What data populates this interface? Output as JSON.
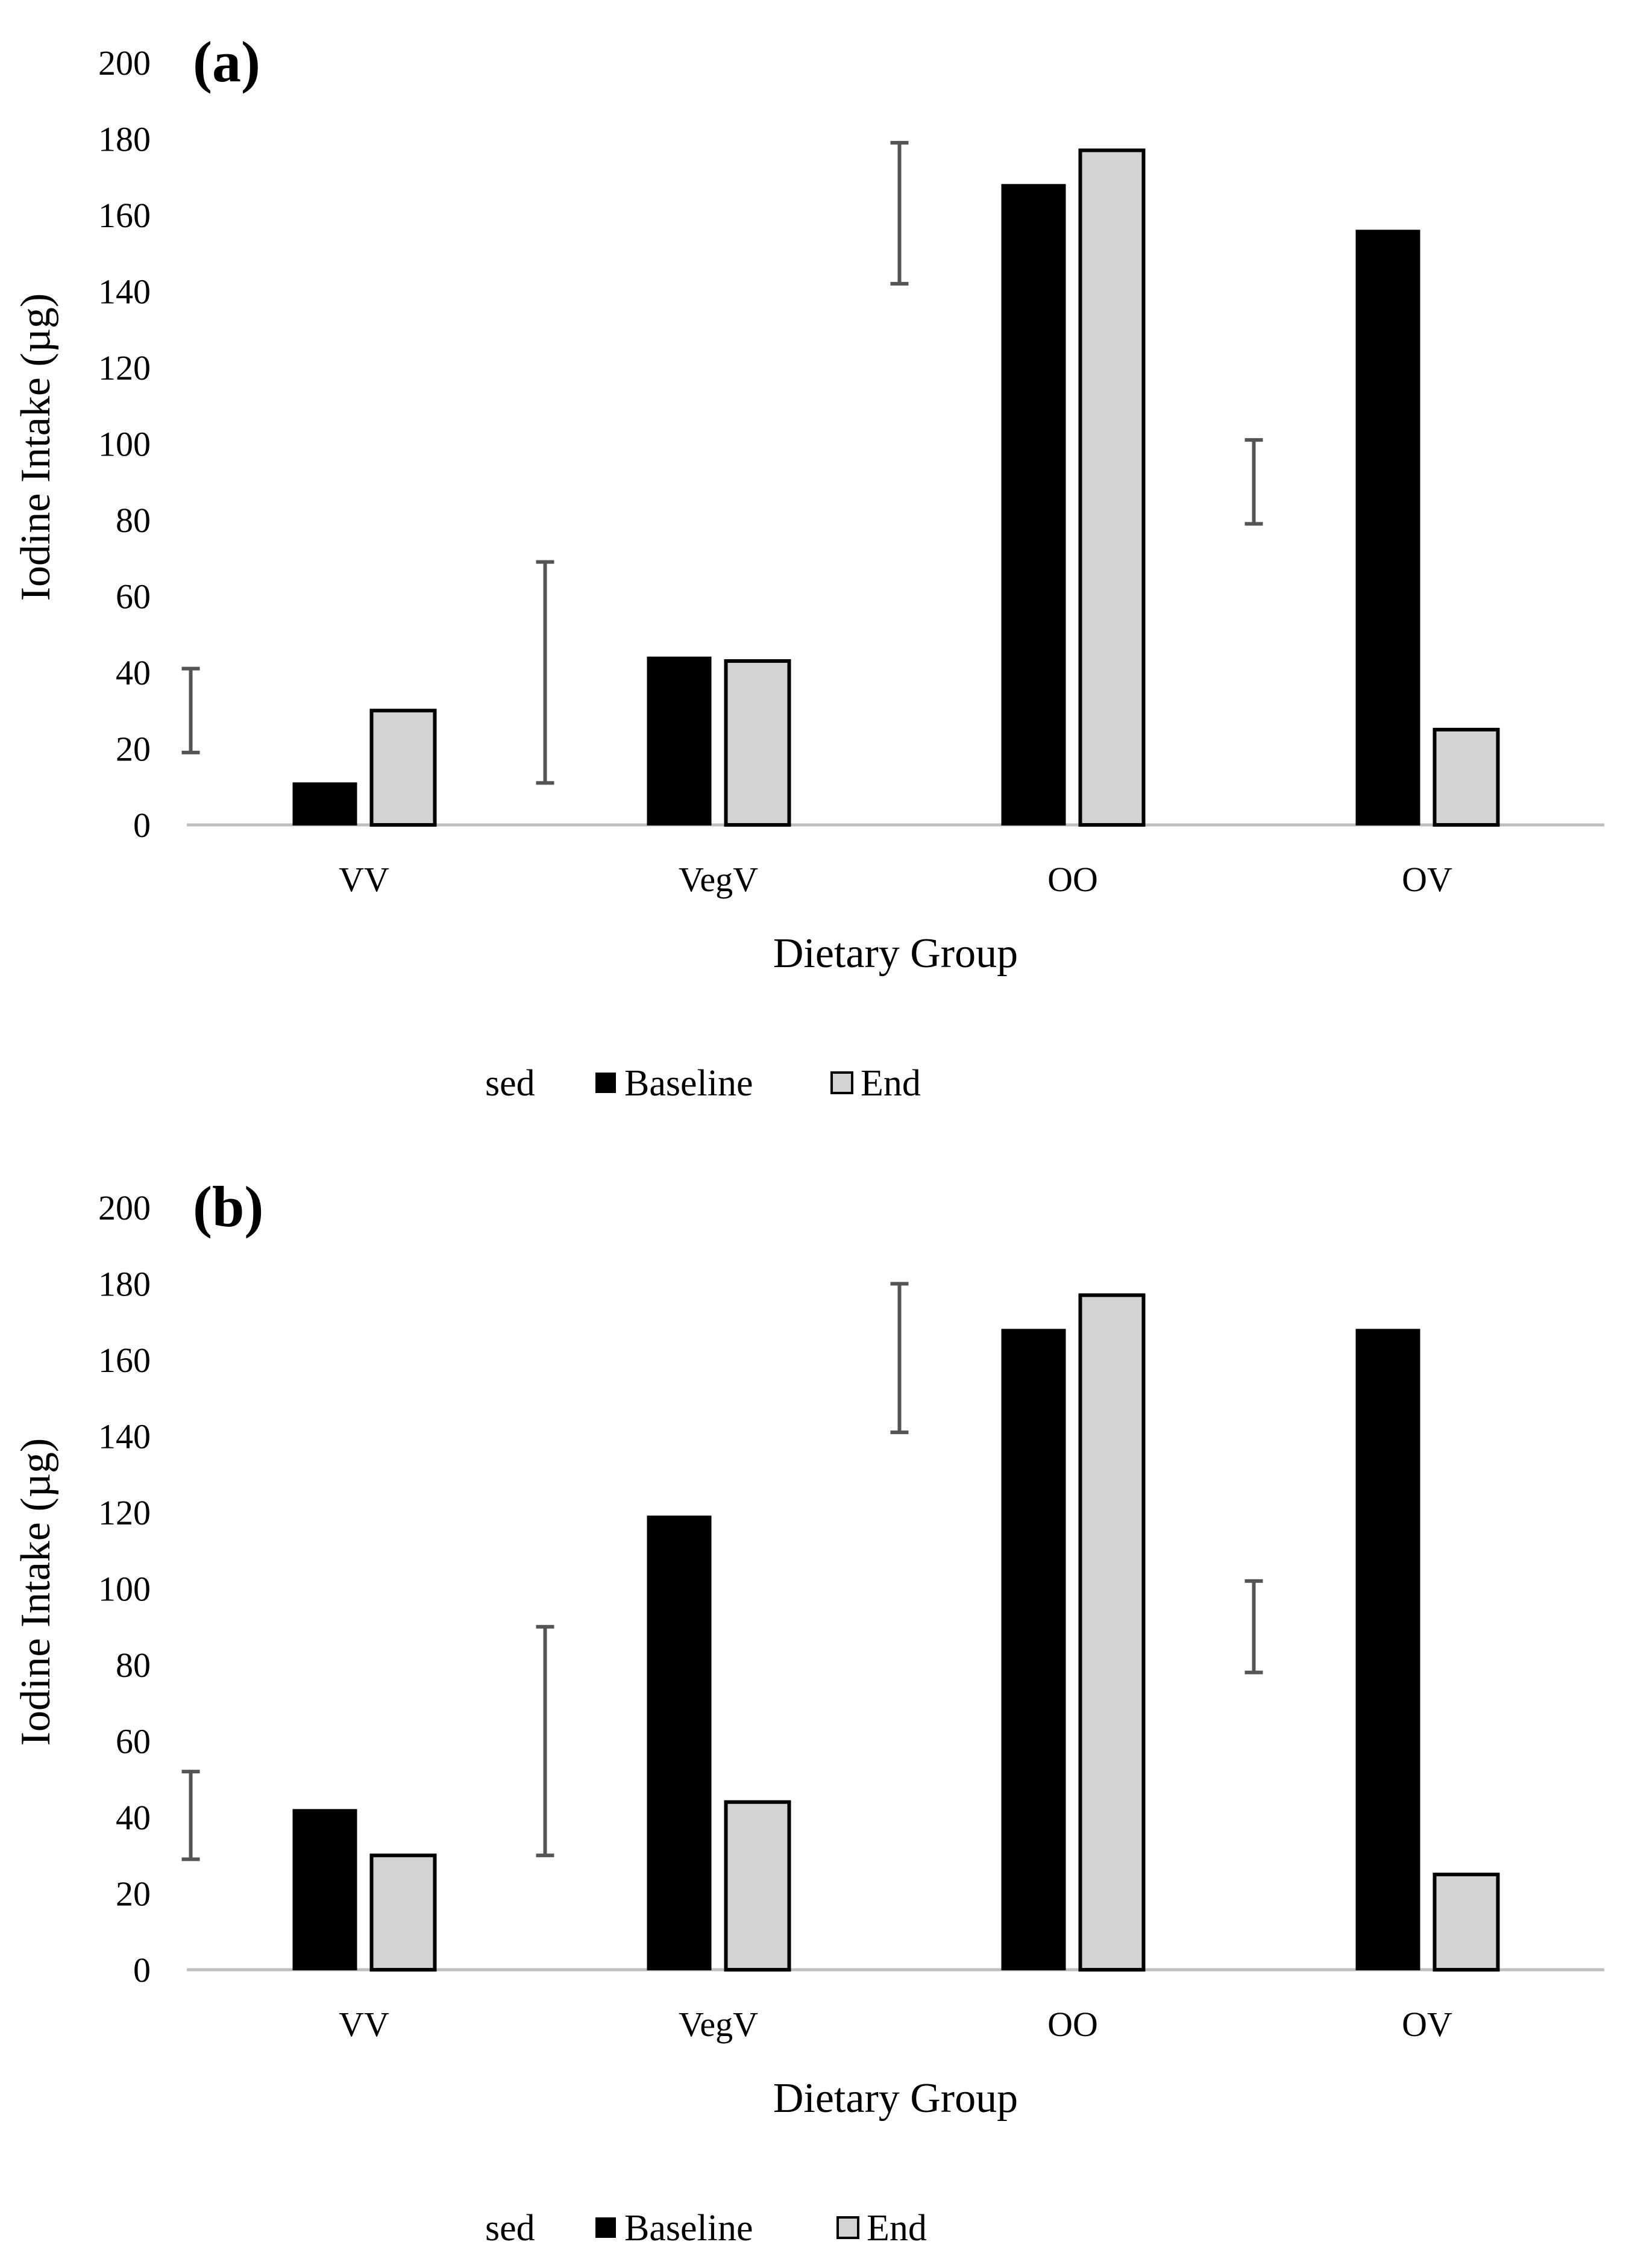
{
  "legend": {
    "sed_label": "sed",
    "baseline_label": "Baseline",
    "end_label": "End"
  },
  "colors": {
    "baseline": "#000000",
    "end": "#d3d3d3",
    "bar_outline": "#000000",
    "error_bar": "#555555",
    "axis": "#bfbfbf"
  },
  "chart_data": [
    {
      "panel_label": "(a)",
      "type": "bar",
      "xlabel": "Dietary Group",
      "ylabel": "Iodine Intake (µg)",
      "ylim": [
        0,
        200
      ],
      "yticks": [
        0,
        20,
        40,
        60,
        80,
        100,
        120,
        140,
        160,
        180,
        200
      ],
      "categories": [
        "VV",
        "VegV",
        "OO",
        "OV"
      ],
      "series": [
        {
          "name": "Baseline",
          "values": [
            11,
            44,
            168,
            156
          ]
        },
        {
          "name": "End",
          "values": [
            30,
            43,
            177,
            25
          ]
        }
      ],
      "sed": [
        [
          19,
          41
        ],
        [
          11,
          69
        ],
        [
          142,
          179
        ],
        [
          79,
          101
        ]
      ]
    },
    {
      "panel_label": "(b)",
      "type": "bar",
      "xlabel": "Dietary Group",
      "ylabel": "Iodine Intake (µg)",
      "ylim": [
        0,
        200
      ],
      "yticks": [
        0,
        20,
        40,
        60,
        80,
        100,
        120,
        140,
        160,
        180,
        200
      ],
      "categories": [
        "VV",
        "VegV",
        "OO",
        "OV"
      ],
      "series": [
        {
          "name": "Baseline",
          "values": [
            42,
            119,
            168,
            168
          ]
        },
        {
          "name": "End",
          "values": [
            30,
            44,
            177,
            25
          ]
        }
      ],
      "sed": [
        [
          29,
          52
        ],
        [
          30,
          90
        ],
        [
          141,
          180
        ],
        [
          78,
          102
        ]
      ]
    }
  ]
}
